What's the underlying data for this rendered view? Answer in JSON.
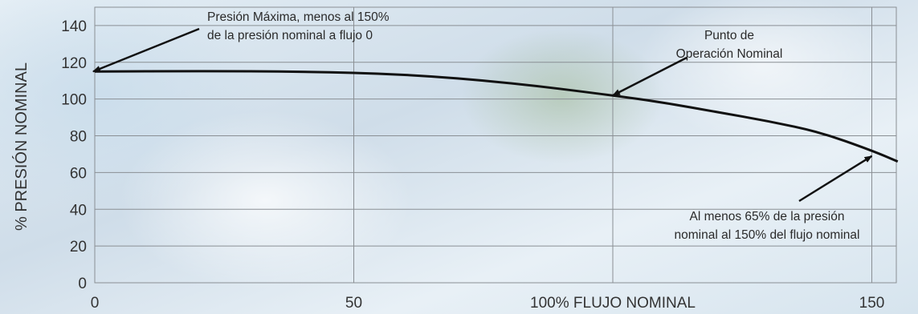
{
  "chart_data": {
    "type": "line",
    "ylabel": "% PRESIÓN NOMINAL",
    "x_ticks": [
      {
        "value": 0,
        "label": "0"
      },
      {
        "value": 50,
        "label": "50"
      },
      {
        "value": 100,
        "label": "100% FLUJO NOMINAL"
      },
      {
        "value": 150,
        "label": "150"
      }
    ],
    "y_ticks": [
      0,
      20,
      40,
      60,
      80,
      100,
      120,
      140
    ],
    "xlim": [
      0,
      175
    ],
    "ylim": [
      0,
      150
    ],
    "grid": true,
    "series": [
      {
        "color": "#111111",
        "x": [
          0,
          20,
          40,
          60,
          80,
          100,
          110,
          120,
          130,
          140,
          150,
          155
        ],
        "y": [
          115,
          115.2,
          115,
          113.5,
          109,
          102,
          98,
          93,
          88,
          82,
          72,
          66
        ]
      }
    ],
    "annotations": [
      {
        "lines": [
          "Presión Máxima, menos al 150%",
          "de la presión nominal a flujo 0"
        ],
        "point": [
          0,
          115
        ]
      },
      {
        "lines": [
          "Punto de",
          "Operación Nominal"
        ],
        "point": [
          100,
          102
        ]
      },
      {
        "lines": [
          "Al menos 65% de la presión",
          "nominal al 150% del flujo nominal"
        ],
        "point": [
          150,
          69
        ]
      }
    ]
  }
}
